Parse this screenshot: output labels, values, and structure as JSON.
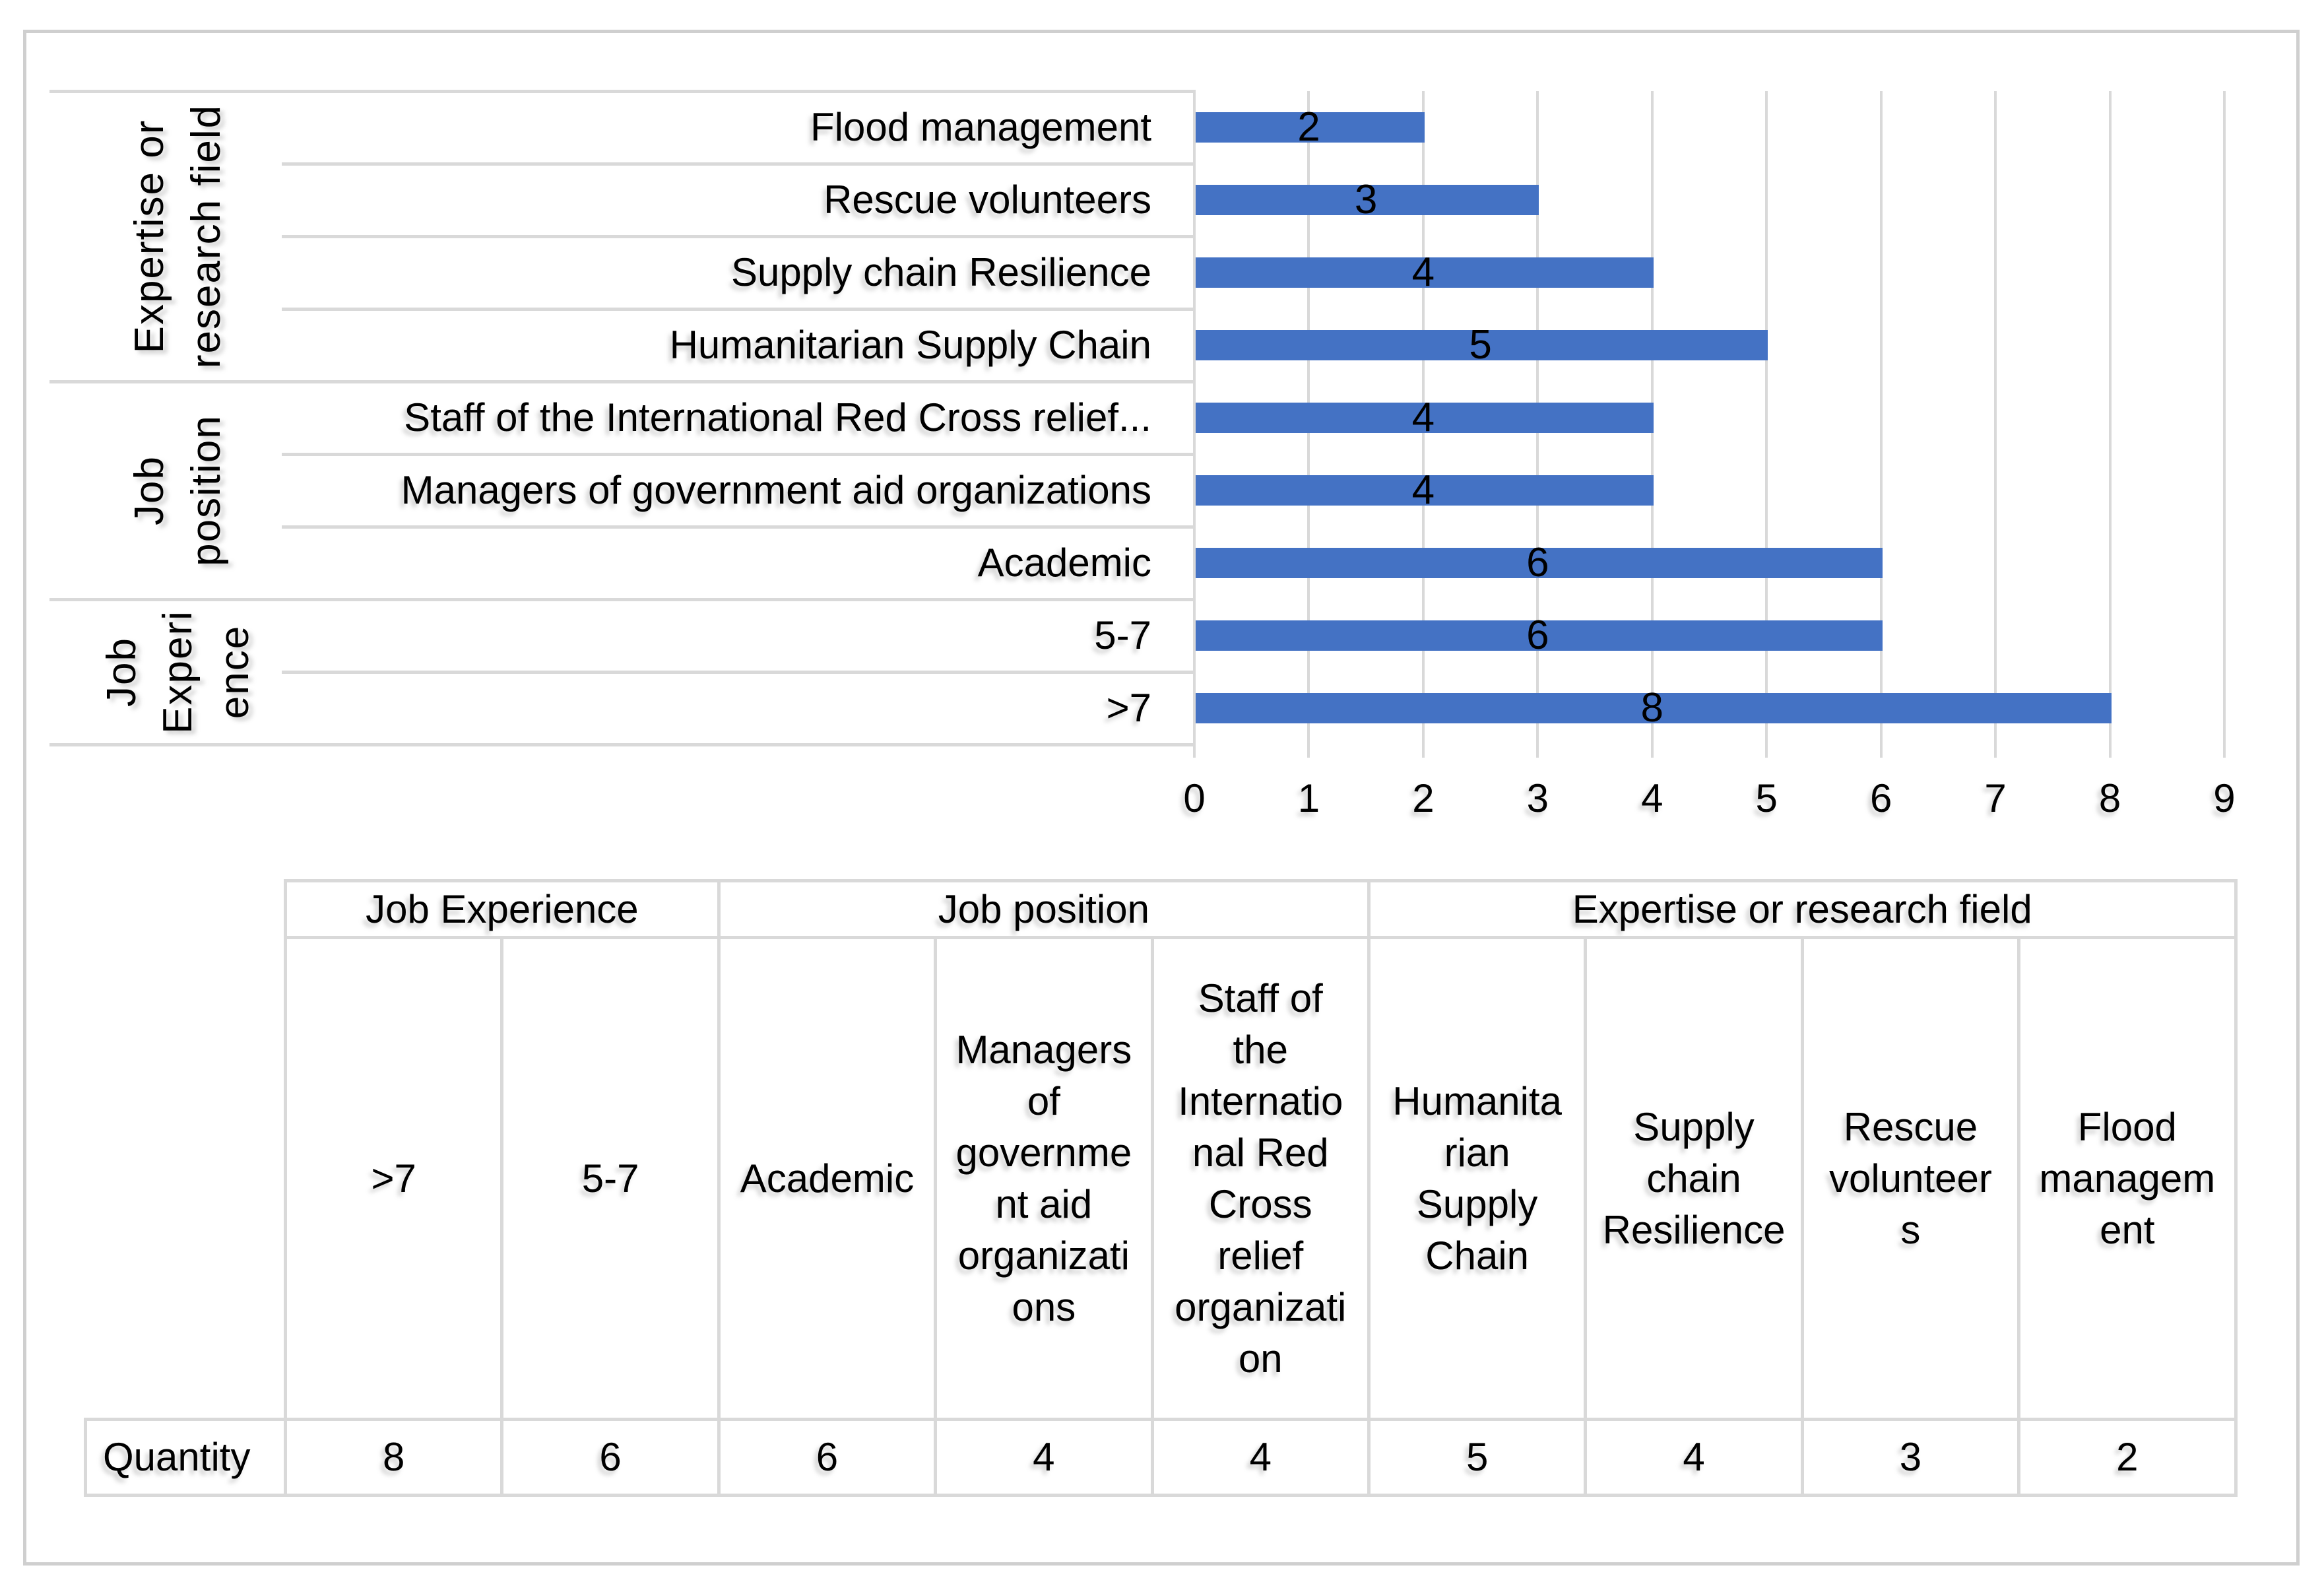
{
  "chart": {
    "bar_color": "#4472C4",
    "gridline_color": "#D9D9D9",
    "groups": [
      {
        "label": "Expertise or\nresearch field",
        "categories": [
          {
            "label": "Flood management",
            "value": 2
          },
          {
            "label": "Rescue volunteers",
            "value": 3
          },
          {
            "label": "Supply chain Resilience",
            "value": 4
          },
          {
            "label": "Humanitarian Supply Chain",
            "value": 5
          }
        ]
      },
      {
        "label": "Job\nposition",
        "categories": [
          {
            "label": "Staff of the International Red Cross relief...",
            "value": 4
          },
          {
            "label": "Managers of government aid organizations",
            "value": 4
          },
          {
            "label": "Academic",
            "value": 6
          }
        ]
      },
      {
        "label": "Job Experi\nence",
        "categories": [
          {
            "label": "5-7",
            "value": 6
          },
          {
            "label": ">7",
            "value": 8
          }
        ]
      }
    ],
    "x_axis": {
      "min": 0,
      "max": 9,
      "ticks": [
        "0",
        "1",
        "2",
        "3",
        "4",
        "5",
        "6",
        "7",
        "8",
        "9"
      ]
    }
  },
  "table": {
    "row_header": "Quantity",
    "group_headers": [
      {
        "label": "Job Experience",
        "cols": 2
      },
      {
        "label": "Job position",
        "cols": 3
      },
      {
        "label": "Expertise or research field",
        "cols": 4
      }
    ],
    "columns": [
      {
        "label": ">7",
        "quantity": "8"
      },
      {
        "label": "5-7",
        "quantity": "6"
      },
      {
        "label": "Academic",
        "quantity": "6"
      },
      {
        "label": "Managers\nof\ngovernme\nnt aid\norganizati\nons",
        "quantity": "4"
      },
      {
        "label": "Staff of\nthe\nInternatio\nnal Red\nCross\nrelief\norganizati\non",
        "quantity": "4"
      },
      {
        "label": "Humanita\nrian\nSupply\nChain",
        "quantity": "5"
      },
      {
        "label": "Supply\nchain\nResilience",
        "quantity": "4"
      },
      {
        "label": "Rescue\nvolunteer\ns",
        "quantity": "3"
      },
      {
        "label": "Flood\nmanagem\nent",
        "quantity": "2"
      }
    ]
  },
  "chart_data": {
    "type": "bar",
    "orientation": "horizontal",
    "title": "",
    "categories": [
      "Flood management",
      "Rescue volunteers",
      "Supply chain Resilience",
      "Humanitarian Supply Chain",
      "Staff of the International Red Cross relief organization",
      "Managers of government aid organizations",
      "Academic",
      "5-7",
      ">7"
    ],
    "values": [
      2,
      3,
      4,
      5,
      4,
      4,
      6,
      6,
      8
    ],
    "category_groups": [
      {
        "label": "Expertise or research field",
        "count": 4
      },
      {
        "label": "Job position",
        "count": 3
      },
      {
        "label": "Job Experience",
        "count": 2
      }
    ],
    "xlabel": "",
    "ylabel": "",
    "xlim": [
      0,
      9
    ],
    "xticks": [
      0,
      1,
      2,
      3,
      4,
      5,
      6,
      7,
      8,
      9
    ],
    "grid": true,
    "legend": false,
    "data_labels": true,
    "bar_color": "#4472C4"
  }
}
